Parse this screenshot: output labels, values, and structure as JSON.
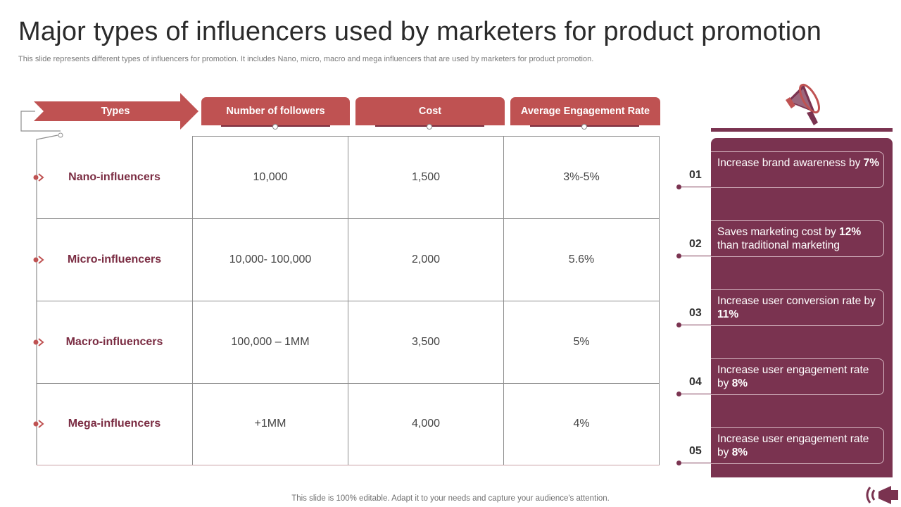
{
  "title": "Major types of influencers used by marketers for product promotion",
  "subtitle": "This slide represents different types of influencers for promotion. It includes Nano, micro, macro and mega influencers that are used by marketers for product promotion.",
  "table": {
    "headers": [
      "Types",
      "Number of followers",
      "Cost",
      "Average Engagement Rate"
    ],
    "rows": [
      {
        "type": "Nano-influencers",
        "followers": "10,000",
        "cost": "1,500",
        "engagement": "3%-5%"
      },
      {
        "type": "Micro-influencers",
        "followers": "10,000- 100,000",
        "cost": "2,000",
        "engagement": "5.6%"
      },
      {
        "type": "Macro-influencers",
        "followers": "100,000 – 1MM",
        "cost": "3,500",
        "engagement": "5%"
      },
      {
        "type": "Mega-influencers",
        "followers": "+1MM",
        "cost": "4,000",
        "engagement": "4%"
      }
    ]
  },
  "benefits": [
    {
      "num": "01",
      "text": "Increase brand awareness by ",
      "highlight": "7%",
      "suffix": ""
    },
    {
      "num": "02",
      "text": "Saves marketing cost by ",
      "highlight": "12%",
      "suffix": " than traditional marketing"
    },
    {
      "num": "03",
      "text": "Increase user conversion rate by ",
      "highlight": "11%",
      "suffix": ""
    },
    {
      "num": "04",
      "text": "Increase user engagement rate by ",
      "highlight": "8%",
      "suffix": ""
    },
    {
      "num": "05",
      "text": "Increase user engagement rate by ",
      "highlight": "8%",
      "suffix": ""
    }
  ],
  "footer": "This slide is 100% editable. Adapt it to your needs and capture your audience's attention.",
  "colors": {
    "header_red": "#bf5252",
    "panel_maroon": "#7a3350",
    "label_maroon": "#7b2d43"
  },
  "icons": [
    "megaphone-icon",
    "megaphone-corner-icon"
  ]
}
